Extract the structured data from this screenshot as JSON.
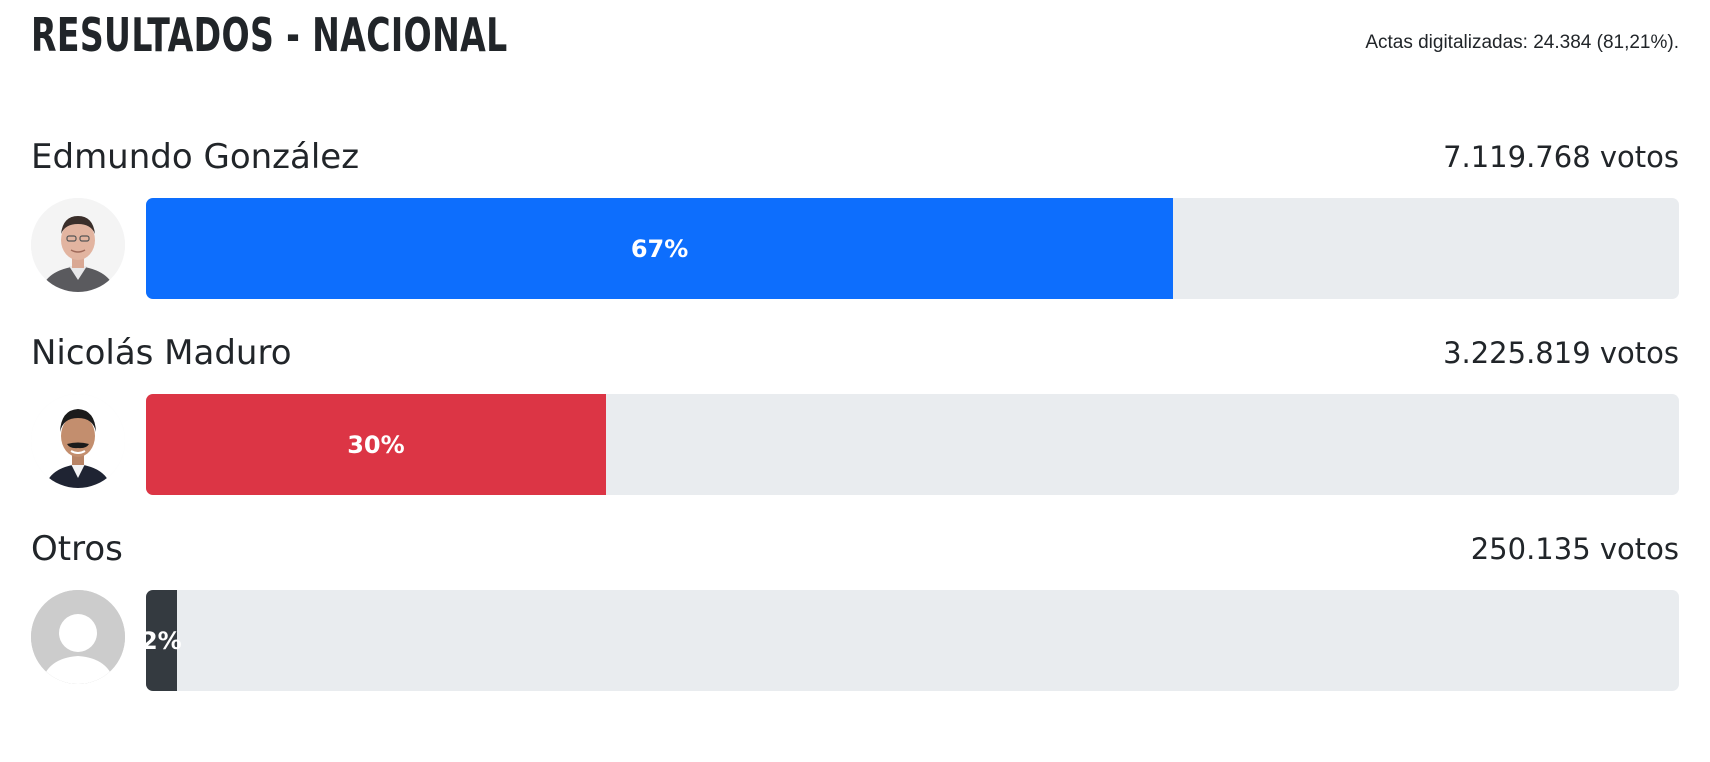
{
  "header": {
    "title": "RESULTADOS - NACIONAL",
    "summary": "Actas digitalizadas: 24.384 (81,21%)."
  },
  "candidates": [
    {
      "name": "Edmundo González",
      "votes": "7.119.768 votos",
      "percent_label": "67%",
      "percent": 67,
      "color": "#0d6efd",
      "avatar_icon": "candidate-photo-icon"
    },
    {
      "name": "Nicolás Maduro",
      "votes": "3.225.819 votos",
      "percent_label": "30%",
      "percent": 30,
      "color": "#dc3545",
      "avatar_icon": "candidate-photo-icon"
    },
    {
      "name": "Otros",
      "votes": "250.135 votos",
      "percent_label": "2%",
      "percent": 2,
      "color": "#343a40",
      "avatar_icon": "default-avatar-icon"
    }
  ],
  "colors": {
    "track": "#e9ecef",
    "text": "#212529"
  }
}
